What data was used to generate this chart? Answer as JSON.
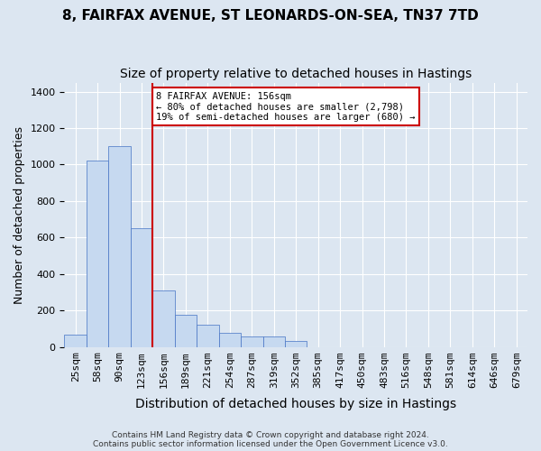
{
  "title_line1": "8, FAIRFAX AVENUE, ST LEONARDS-ON-SEA, TN37 7TD",
  "title_line2": "Size of property relative to detached houses in Hastings",
  "xlabel": "Distribution of detached houses by size in Hastings",
  "ylabel": "Number of detached properties",
  "footer_line1": "Contains HM Land Registry data © Crown copyright and database right 2024.",
  "footer_line2": "Contains public sector information licensed under the Open Government Licence v3.0.",
  "bin_labels": [
    "25sqm",
    "58sqm",
    "90sqm",
    "123sqm",
    "156sqm",
    "189sqm",
    "221sqm",
    "254sqm",
    "287sqm",
    "319sqm",
    "352sqm",
    "385sqm",
    "417sqm",
    "450sqm",
    "483sqm",
    "516sqm",
    "548sqm",
    "581sqm",
    "614sqm",
    "646sqm",
    "679sqm"
  ],
  "bar_values": [
    65,
    1020,
    1100,
    650,
    310,
    175,
    120,
    75,
    55,
    55,
    30,
    0,
    0,
    0,
    0,
    0,
    0,
    0,
    0,
    0,
    0
  ],
  "bar_color": "#c6d9f0",
  "bar_edge_color": "#4472c4",
  "vline_x": 4,
  "vline_color": "#cc0000",
  "annotation_text": "8 FAIRFAX AVENUE: 156sqm\n← 80% of detached houses are smaller (2,798)\n19% of semi-detached houses are larger (680) →",
  "annotation_box_color": "#cc0000",
  "ylim": [
    0,
    1450
  ],
  "yticks": [
    0,
    200,
    400,
    600,
    800,
    1000,
    1200,
    1400
  ],
  "background_color": "#dce6f1",
  "plot_bg_color": "#dce6f1",
  "grid_color": "#ffffff",
  "title_fontsize": 11,
  "subtitle_fontsize": 10,
  "xlabel_fontsize": 10,
  "ylabel_fontsize": 9,
  "tick_fontsize": 8
}
